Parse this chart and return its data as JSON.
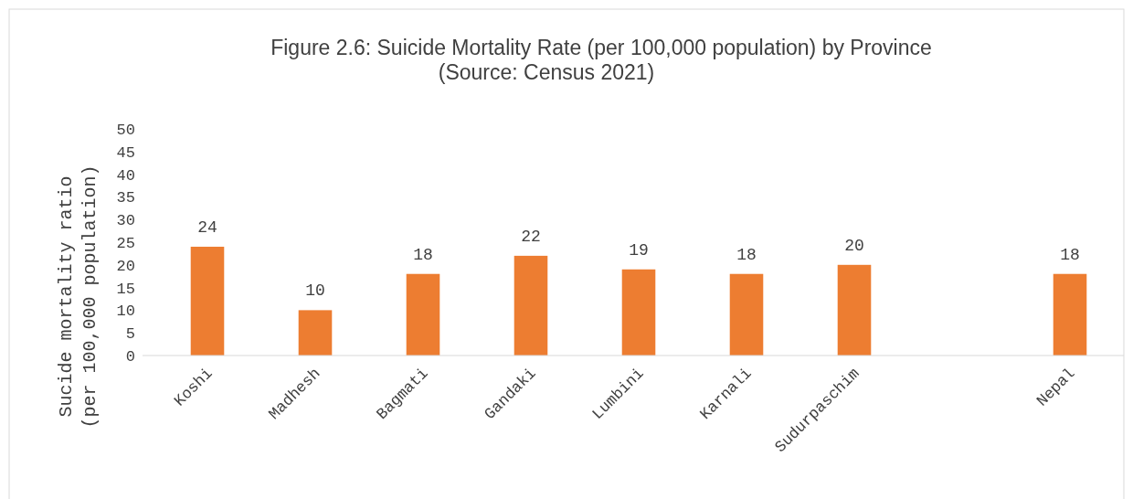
{
  "chart_data": {
    "type": "bar",
    "title": "Figure 2.6: Suicide Mortality Rate (per 100,000 population) by Province\n(Source: Census 2021)",
    "ylabel": "Sucide mortality ratio\n(per 100,000 population)",
    "categories": [
      "Koshi",
      "Madhesh",
      "Bagmati",
      "Gandaki",
      "Lumbini",
      "Karnali",
      "Sudurpaschim",
      null,
      "Nepal"
    ],
    "values": [
      24,
      10,
      18,
      22,
      19,
      18,
      20,
      null,
      18
    ],
    "color": "#ed7d31",
    "ylim": [
      0,
      50
    ],
    "yticks": [
      0,
      5,
      10,
      15,
      20,
      25,
      30,
      35,
      40,
      45,
      50
    ],
    "grid": false,
    "data_labels": true
  }
}
